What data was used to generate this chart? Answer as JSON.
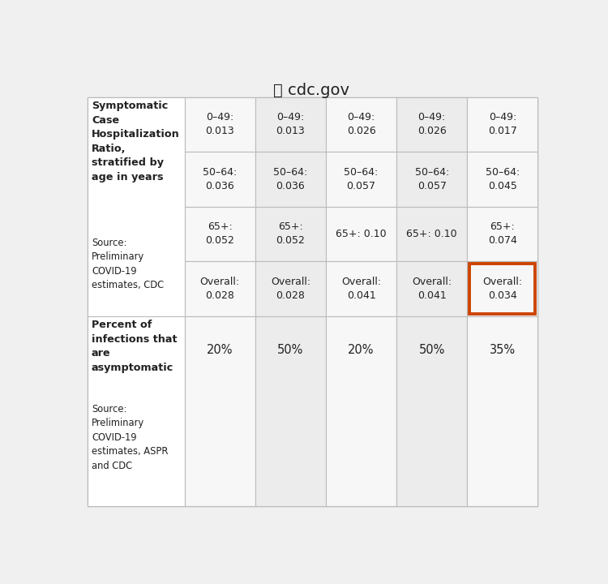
{
  "title": "🔒 cdc.gov",
  "background_color": "#f0f0f0",
  "table_bg": "#ffffff",
  "grid_color": "#bbbbbb",
  "text_color": "#222222",
  "highlight_box_color": "#cc4400",
  "col_data": [
    {
      "sub_rows": [
        "0–49:\n0.013",
        "50–64:\n0.036",
        "65+:\n0.052",
        "Overall:\n0.028"
      ],
      "row2": "20%"
    },
    {
      "sub_rows": [
        "0–49:\n0.013",
        "50–64:\n0.036",
        "65+:\n0.052",
        "Overall:\n0.028"
      ],
      "row2": "50%"
    },
    {
      "sub_rows": [
        "0–49:\n0.026",
        "50–64:\n0.057",
        "65+: 0.10",
        "Overall:\n0.041"
      ],
      "row2": "20%"
    },
    {
      "sub_rows": [
        "0–49:\n0.026",
        "50–64:\n0.057",
        "65+: 0.10",
        "Overall:\n0.041"
      ],
      "row2": "50%"
    },
    {
      "sub_rows": [
        "0–49:\n0.017",
        "50–64:\n0.045",
        "65+:\n0.074",
        "Overall:\n0.034"
      ],
      "row2": "35%",
      "highlight_last": true
    }
  ],
  "figsize": [
    7.5,
    7.2
  ],
  "dpi": 100
}
